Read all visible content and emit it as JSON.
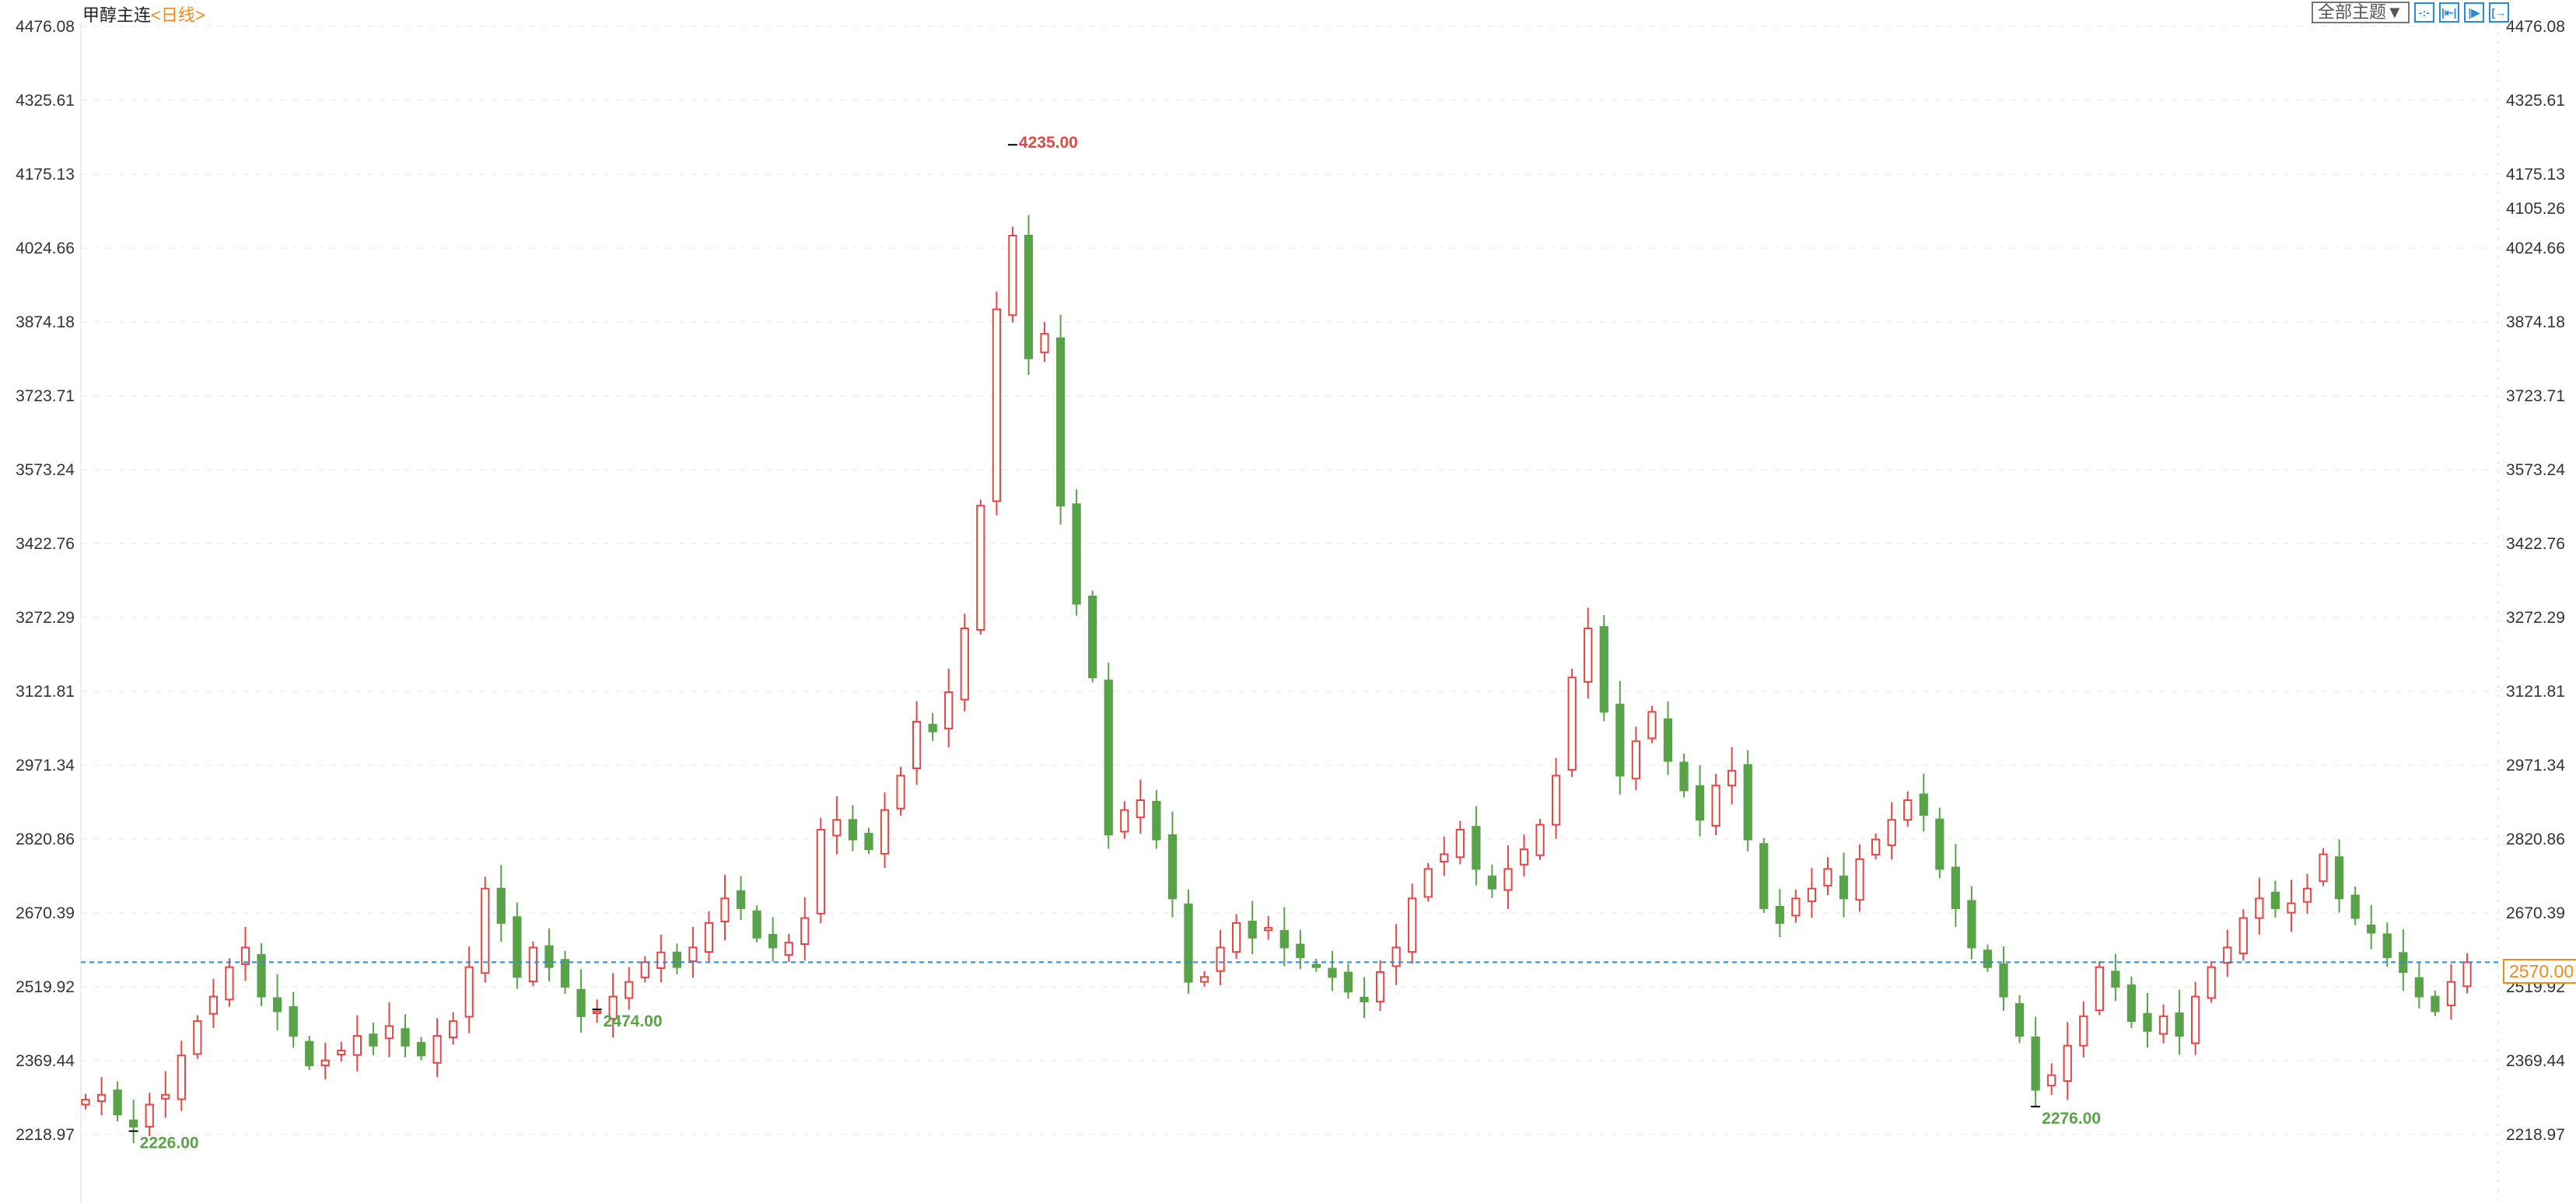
{
  "header": {
    "instrument": "甲醇主连",
    "period": "<日线>",
    "theme_button": "全部主题▼",
    "tools": [
      {
        "icon": "crosshair-icon",
        "glyph": "-:-"
      },
      {
        "icon": "zoom-range-icon",
        "glyph": "|⇤|"
      },
      {
        "icon": "play-forward-icon",
        "glyph": "|▶"
      },
      {
        "icon": "go-latest-icon",
        "glyph": "[→"
      }
    ]
  },
  "colors": {
    "up": "#e04848",
    "down": "#5aa24a",
    "last_price": "#f08c1e",
    "price_line": "#2b8ad8",
    "tool": "#2b8ad8"
  },
  "chart_data": {
    "type": "candlestick",
    "title": "甲醇主连 <日线>",
    "ylim": [
      2218.97,
      4476.08
    ],
    "y_ticks": [
      "4476.08",
      "4325.61",
      "4175.13",
      "4024.66",
      "3874.18",
      "3723.71",
      "3573.24",
      "3422.76",
      "3272.29",
      "3121.81",
      "2971.34",
      "2820.86",
      "2670.39",
      "2519.92",
      "2369.44",
      "2218.97"
    ],
    "grid": true,
    "closes": [
      2290,
      2300,
      2260,
      2235,
      2280,
      2300,
      2380,
      2450,
      2500,
      2560,
      2600,
      2500,
      2470,
      2420,
      2360,
      2370,
      2390,
      2420,
      2400,
      2440,
      2400,
      2380,
      2420,
      2450,
      2560,
      2720,
      2650,
      2540,
      2600,
      2560,
      2520,
      2460,
      2470,
      2500,
      2530,
      2570,
      2590,
      2560,
      2600,
      2650,
      2700,
      2680,
      2620,
      2600,
      2610,
      2660,
      2840,
      2860,
      2820,
      2800,
      2880,
      2950,
      3060,
      3040,
      3120,
      3250,
      3500,
      3900,
      4050,
      3800,
      3850,
      3500,
      3300,
      3150,
      2830,
      2880,
      2900,
      2820,
      2700,
      2530,
      2540,
      2600,
      2650,
      2620,
      2640,
      2600,
      2580,
      2560,
      2540,
      2510,
      2490,
      2550,
      2600,
      2700,
      2760,
      2790,
      2840,
      2760,
      2720,
      2760,
      2800,
      2850,
      2950,
      3150,
      3250,
      3080,
      2950,
      3020,
      3080,
      2980,
      2920,
      2860,
      2930,
      2960,
      2820,
      2680,
      2650,
      2700,
      2720,
      2760,
      2700,
      2780,
      2820,
      2860,
      2900,
      2870,
      2760,
      2680,
      2600,
      2560,
      2500,
      2420,
      2310,
      2340,
      2400,
      2460,
      2560,
      2520,
      2450,
      2430,
      2460,
      2420,
      2500,
      2560,
      2600,
      2660,
      2700,
      2680,
      2690,
      2720,
      2790,
      2700,
      2660,
      2630,
      2580,
      2550,
      2500,
      2470,
      2530,
      2570
    ],
    "annotations": [
      {
        "label": "4235.00",
        "price": 4235.0,
        "kind": "high"
      },
      {
        "label": "2226.00",
        "price": 2226.0,
        "kind": "low"
      },
      {
        "label": "2474.00",
        "price": 2474.0,
        "kind": "low"
      },
      {
        "label": "2276.00",
        "price": 2276.0,
        "kind": "low"
      }
    ],
    "last_price": "2570.00",
    "last_price_value": 2570.0,
    "cursor_price": "4105.26",
    "cursor_price_value": 4105.26
  }
}
